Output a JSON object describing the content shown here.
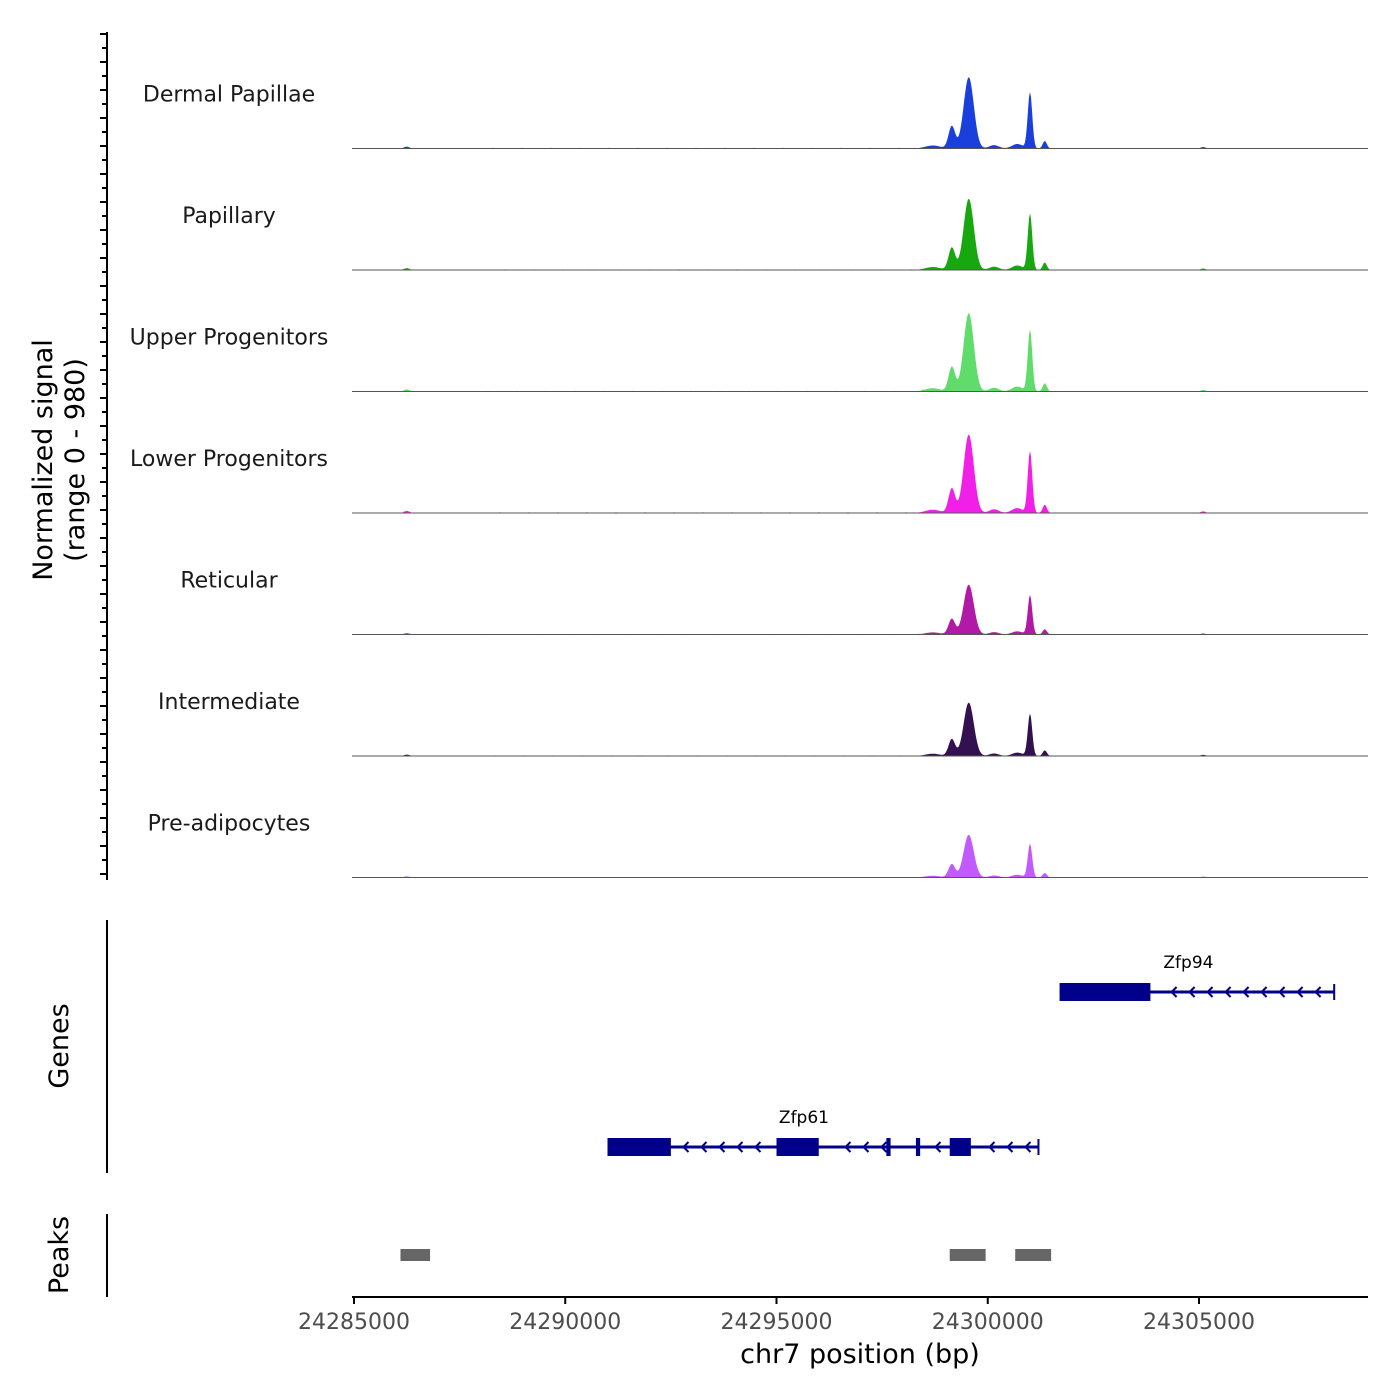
{
  "chart_data": {
    "type": "area",
    "chromosome": "chr7",
    "xlabel": "chr7 position (bp)",
    "xlim": [
      24285000,
      24309000
    ],
    "x_ticks": [
      24285000,
      24290000,
      24295000,
      24300000,
      24305000
    ],
    "x_tick_labels": [
      "24285000",
      "24290000",
      "24295000",
      "24300000",
      "24305000"
    ],
    "signal": {
      "ylabel": "Normalized signal",
      "ylabel_range": "(range 0 - 980)",
      "ylim": [
        0,
        980
      ],
      "peak_shape": [
        {
          "x": 24286250,
          "w": 90,
          "h": 0.025
        },
        {
          "x": 24298700,
          "w": 250,
          "h": 0.04
        },
        {
          "x": 24299150,
          "w": 110,
          "h": 0.3
        },
        {
          "x": 24299550,
          "w": 170,
          "h": 0.95
        },
        {
          "x": 24300150,
          "w": 160,
          "h": 0.045
        },
        {
          "x": 24300700,
          "w": 180,
          "h": 0.06
        },
        {
          "x": 24301000,
          "w": 75,
          "h": 0.75
        },
        {
          "x": 24301350,
          "w": 70,
          "h": 0.1
        },
        {
          "x": 24305100,
          "w": 80,
          "h": 0.02
        }
      ],
      "tracks": [
        {
          "name": "Dermal Papillae",
          "color": "#1a3fdc",
          "max": 800
        },
        {
          "name": "Papillary",
          "color": "#17a80f",
          "max": 800
        },
        {
          "name": "Upper Progenitors",
          "color": "#5fdc6a",
          "max": 880
        },
        {
          "name": "Lower Progenitors",
          "color": "#f21fe8",
          "max": 880
        },
        {
          "name": "Reticular",
          "color": "#b01aa6",
          "max": 560
        },
        {
          "name": "Intermediate",
          "color": "#33104f",
          "max": 600
        },
        {
          "name": "Pre-adipocytes",
          "color": "#c25bff",
          "max": 480
        }
      ]
    },
    "genes": {
      "title": "Genes",
      "color": "#00008b",
      "items": [
        {
          "name": "Zfp94",
          "start": 24301700,
          "end": 24308200,
          "strand": "-",
          "exons": [
            [
              24301700,
              24303850
            ]
          ]
        },
        {
          "name": "Zfp61",
          "start": 24291000,
          "end": 24301200,
          "strand": "-",
          "exons": [
            [
              24291000,
              24292500
            ],
            [
              24295000,
              24296000
            ],
            [
              24297600,
              24297700
            ],
            [
              24298300,
              24298400
            ],
            [
              24299100,
              24299600
            ]
          ]
        }
      ]
    },
    "peaks": {
      "title": "Peaks",
      "color": "#666666",
      "regions": [
        [
          24286100,
          24286800
        ],
        [
          24299100,
          24299950
        ],
        [
          24300650,
          24301500
        ]
      ]
    }
  }
}
